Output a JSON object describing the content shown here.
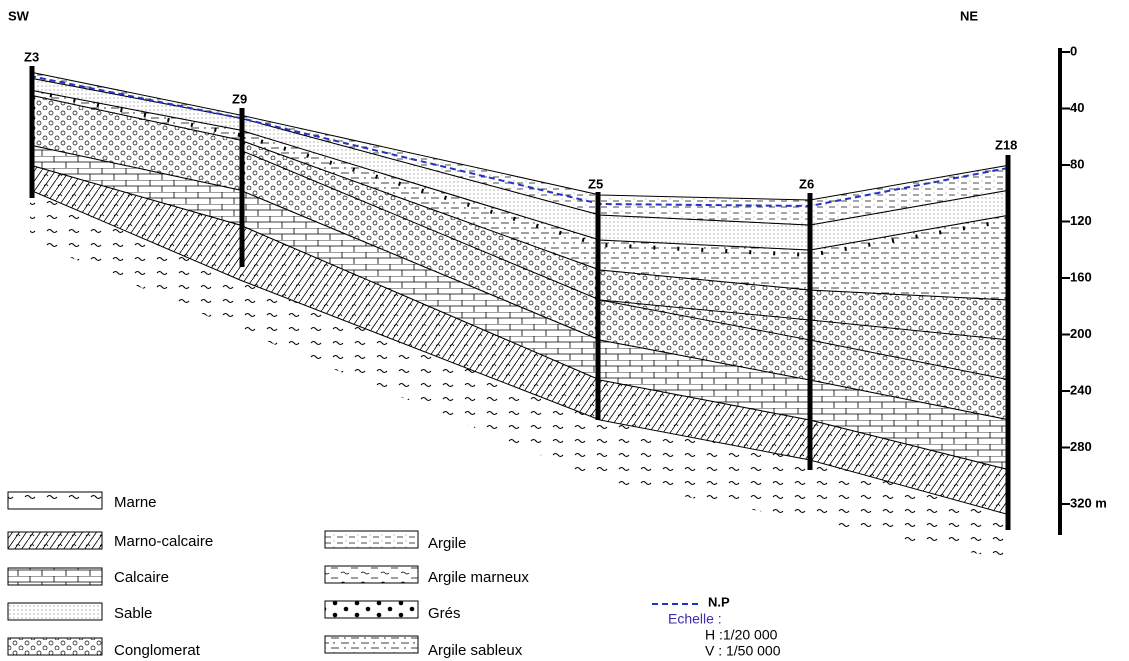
{
  "header": {
    "left": "SW",
    "right": "NE"
  },
  "wells": [
    {
      "label": "Z3"
    },
    {
      "label": "Z9"
    },
    {
      "label": "Z5"
    },
    {
      "label": "Z6"
    },
    {
      "label": "Z18"
    }
  ],
  "scale": {
    "ticks": [
      "0",
      "40",
      "80",
      "120",
      "160",
      "200",
      "240",
      "280",
      "320 m"
    ]
  },
  "legend": [
    {
      "label": "Marne"
    },
    {
      "label": "Marno-calcaire"
    },
    {
      "label": "Calcaire"
    },
    {
      "label": "Sable"
    },
    {
      "label": "Conglomerat"
    },
    {
      "label": "Argile"
    },
    {
      "label": "Argile marneux"
    },
    {
      "label": "Grés"
    },
    {
      "label": "Argile sableux"
    },
    {
      "label": "N.P"
    }
  ],
  "echelle": {
    "title": "Echelle :",
    "h": "H :1/20 000",
    "v": "V : 1/50 000"
  }
}
